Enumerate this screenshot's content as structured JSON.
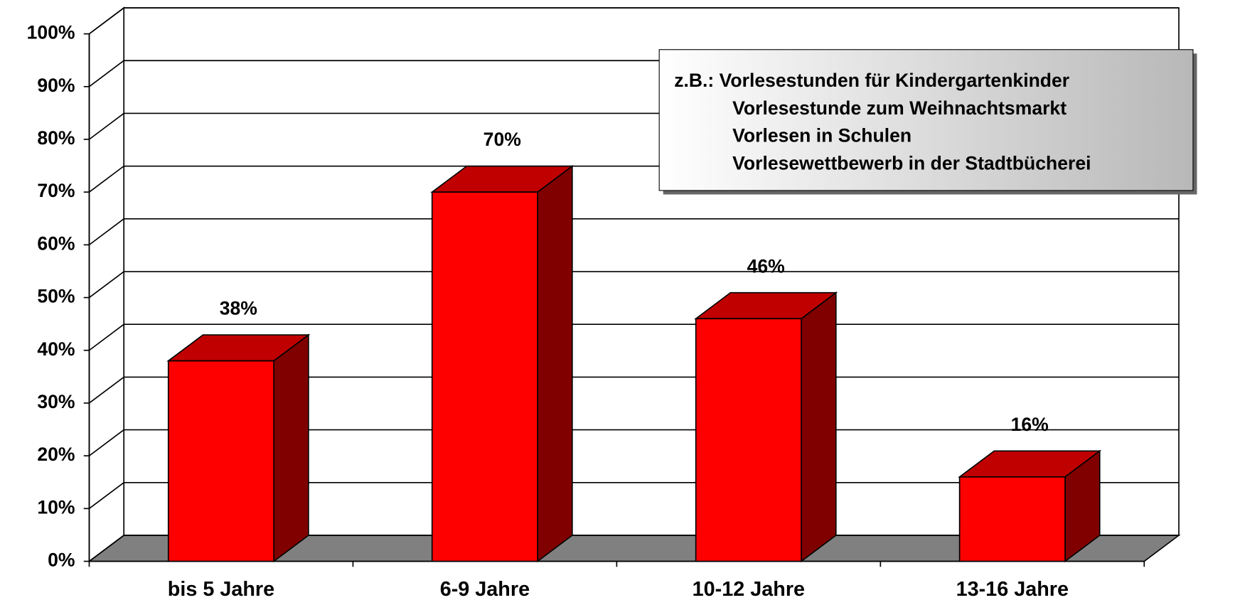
{
  "chart_data": {
    "type": "bar3d",
    "categories": [
      "bis 5 Jahre",
      "6-9 Jahre",
      "10-12 Jahre",
      "13-16 Jahre"
    ],
    "values": [
      38,
      70,
      46,
      16
    ],
    "value_labels": [
      "38%",
      "70%",
      "46%",
      "16%"
    ],
    "color": "#ff0000",
    "ylim": [
      0,
      100
    ],
    "yticks": [
      {
        "value": 0,
        "label": "0%"
      },
      {
        "value": 10,
        "label": "10%"
      },
      {
        "value": 20,
        "label": "20%"
      },
      {
        "value": 30,
        "label": "30%"
      },
      {
        "value": 40,
        "label": "40%"
      },
      {
        "value": 50,
        "label": "50%"
      },
      {
        "value": 60,
        "label": "60%"
      },
      {
        "value": 70,
        "label": "70%"
      },
      {
        "value": 80,
        "label": "80%"
      },
      {
        "value": 90,
        "label": "90%"
      },
      {
        "value": 100,
        "label": "100%"
      }
    ],
    "grid": true,
    "annotation": [
      "z.B.: Vorlesestunden für Kindergartenkinder",
      "Vorlesestunde zum Weihnachtsmarkt",
      "Vorlesen in Schulen",
      "Vorlesewettbewerb in der Stadtbücherei"
    ]
  }
}
